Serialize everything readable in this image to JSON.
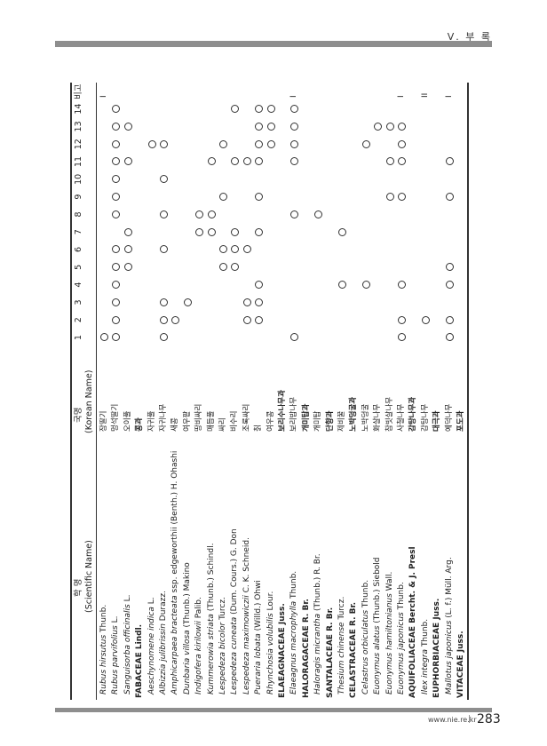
{
  "header": {
    "chapter": "Ⅴ. 부 록"
  },
  "footer": {
    "url": "www.nie.re.kr",
    "page": "283"
  },
  "table": {
    "head_sci_ko": "학 명",
    "head_sci_en": "(Scientific Name)",
    "head_kor_ko": "국명",
    "head_kor_en": "(Korean Name)",
    "columns": [
      "1",
      "2",
      "3",
      "4",
      "5",
      "6",
      "7",
      "8",
      "9",
      "10",
      "11",
      "12",
      "13",
      "14"
    ],
    "remarks_header": "비고",
    "rows": [
      {
        "family": false,
        "name": "Rubus hirsutus",
        "author": " Thunb.",
        "korean": "장딸기",
        "marks": [
          1
        ],
        "remarks": "I"
      },
      {
        "family": false,
        "name": "Rubus parvifolius",
        "author": " L.",
        "korean": "멍석딸기",
        "marks": [
          1,
          2,
          3,
          4,
          5,
          6,
          8,
          9,
          10,
          11,
          12,
          13,
          14
        ],
        "remarks": ""
      },
      {
        "family": false,
        "name": "Sanguisorba officinalis",
        "author": " L.",
        "korean": "오이풀",
        "marks": [
          5,
          6,
          7,
          11,
          13
        ],
        "remarks": ""
      },
      {
        "family": true,
        "name": "FABACEAE",
        "author": " Lindl.",
        "korean": "콩과",
        "marks": [],
        "remarks": ""
      },
      {
        "family": false,
        "name": "Aeschynomene indica",
        "author": " L.",
        "korean": "자귀풀",
        "marks": [
          12
        ],
        "remarks": ""
      },
      {
        "family": false,
        "name": "Albizzia julibrissin",
        "author": " Durazz.",
        "korean": "자귀나무",
        "marks": [
          1,
          2,
          3,
          6,
          8,
          10,
          12
        ],
        "remarks": ""
      },
      {
        "family": false,
        "name": "Amphicarpaea bracteata",
        "author": " ssp. edgeworthii (Benth.) H. Ohashi",
        "korean": "새콩",
        "marks": [
          2
        ],
        "remarks": ""
      },
      {
        "family": false,
        "name": "Dunbaria villosa",
        "author": " (Thunb.) Makino",
        "korean": "여우팥",
        "marks": [
          3
        ],
        "remarks": ""
      },
      {
        "family": false,
        "name": "Indigofera kirilowii",
        "author": " Palib.",
        "korean": "땅비싸리",
        "marks": [
          7,
          8
        ],
        "remarks": ""
      },
      {
        "family": false,
        "name": "Kummerowia striata",
        "author": " (Thunb.) Schindl.",
        "korean": "매듭풀",
        "marks": [
          7,
          8,
          11
        ],
        "remarks": ""
      },
      {
        "family": false,
        "name": "Lespedeza bicolor",
        "author": " Turcz.",
        "korean": "싸리",
        "marks": [
          5,
          6,
          9,
          12
        ],
        "remarks": ""
      },
      {
        "family": false,
        "name": "Lespedeza cuneata",
        "author": " (Dum. Cours.) G. Don",
        "korean": "비수리",
        "marks": [
          5,
          6,
          7,
          11,
          14
        ],
        "remarks": ""
      },
      {
        "family": false,
        "name": "Lespedeza maximowiczii",
        "author": " C. K. Schneid.",
        "korean": "조록싸리",
        "marks": [
          2,
          3,
          6,
          11
        ],
        "remarks": ""
      },
      {
        "family": false,
        "name": "Pueraria lobata",
        "author": " (Willd.) Ohwi",
        "korean": "칡",
        "marks": [
          2,
          3,
          4,
          7,
          9,
          11,
          12,
          13,
          14
        ],
        "remarks": ""
      },
      {
        "family": false,
        "name": "Rhynchosia volubilis",
        "author": " Lour.",
        "korean": "여우콩",
        "marks": [
          12,
          13,
          14
        ],
        "remarks": ""
      },
      {
        "family": true,
        "name": "ELAEAGNACEAE",
        "author": " Juss.",
        "korean": "보리수나무과",
        "marks": [],
        "remarks": ""
      },
      {
        "family": false,
        "name": "Elaeagnus macrophylla",
        "author": " Thunb.",
        "korean": "보리밥나무",
        "marks": [
          1,
          8,
          11,
          12,
          13,
          14
        ],
        "remarks": "I"
      },
      {
        "family": true,
        "name": "HALORAGACEAE",
        "author": " R. Br.",
        "korean": "개미탑과",
        "marks": [],
        "remarks": ""
      },
      {
        "family": false,
        "name": "Haloragis micrantha",
        "author": " (Thunb.) R. Br.",
        "korean": "개미탑",
        "marks": [
          8
        ],
        "remarks": ""
      },
      {
        "family": true,
        "name": "SANTALACEAE",
        "author": " R. Br.",
        "korean": "단향과",
        "marks": [],
        "remarks": ""
      },
      {
        "family": false,
        "name": "Thesium chinense",
        "author": " Turcz.",
        "korean": "제비꿀",
        "marks": [
          4,
          7
        ],
        "remarks": ""
      },
      {
        "family": true,
        "name": "CELASTRACEAE",
        "author": " R. Br.",
        "korean": "노박덩굴과",
        "marks": [],
        "remarks": ""
      },
      {
        "family": false,
        "name": "Celastrus orbiculatus",
        "author": " Thunb.",
        "korean": "노박덩굴",
        "marks": [
          4,
          12
        ],
        "remarks": ""
      },
      {
        "family": false,
        "name": "Euonymus alatus",
        "author": " (Thunb.) Siebold",
        "korean": "화살나무",
        "marks": [
          13
        ],
        "remarks": ""
      },
      {
        "family": false,
        "name": "Euonymus hamiltonianus",
        "author": " Wall.",
        "korean": "참빗살나무",
        "marks": [
          9,
          11,
          13
        ],
        "remarks": ""
      },
      {
        "family": false,
        "name": "Euonymus japonicus",
        "author": " Thunb.",
        "korean": "사철나무",
        "marks": [
          1,
          2,
          4,
          9,
          11,
          12,
          13
        ],
        "remarks": "I"
      },
      {
        "family": true,
        "name": "AQUIFOLIACEAE",
        "author": " Bercht. & J. Presl",
        "korean": "감탕나무과",
        "marks": [],
        "remarks": ""
      },
      {
        "family": false,
        "name": "Ilex integra",
        "author": " Thunb.",
        "korean": "감탕나무",
        "marks": [
          2
        ],
        "remarks": "II"
      },
      {
        "family": true,
        "name": "EUPHORBIACEAE",
        "author": " Juss.",
        "korean": "대극과",
        "marks": [],
        "remarks": ""
      },
      {
        "family": false,
        "name": "Mallotus japonicus",
        "author": " (L. f.) Müll. Arg.",
        "korean": "예덕나무",
        "marks": [
          1,
          2,
          4,
          5,
          9,
          11
        ],
        "remarks": "I"
      },
      {
        "family": true,
        "name": "VITACEAE",
        "author": " Juss.",
        "korean": "포도과",
        "marks": [],
        "remarks": ""
      }
    ]
  }
}
